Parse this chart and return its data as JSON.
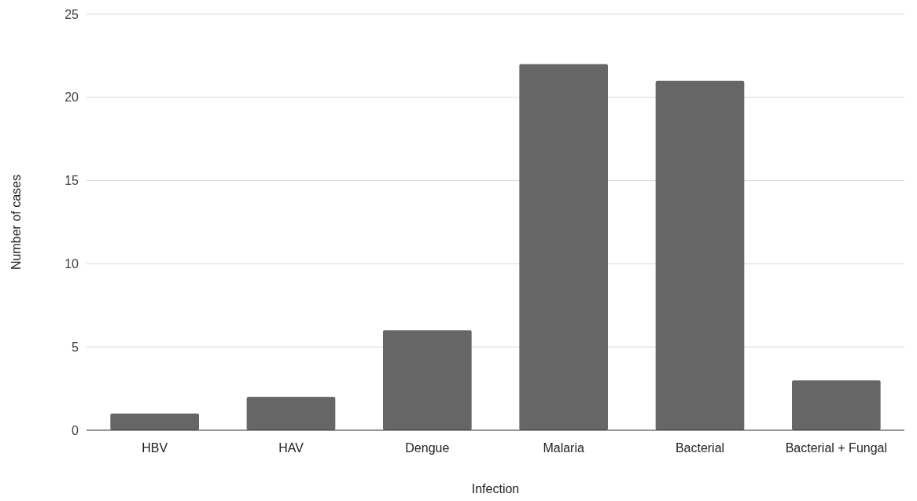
{
  "chart_data": {
    "type": "bar",
    "xlabel": "Infection",
    "ylabel": "Number of cases",
    "categories": [
      "HBV",
      "HAV",
      "Dengue",
      "Malaria",
      "Bacterial",
      "Bacterial + Fungal"
    ],
    "values": [
      1,
      2,
      6,
      22,
      21,
      3
    ],
    "color": "#666666",
    "ylim": [
      0,
      25
    ],
    "yticks": [
      0,
      5,
      10,
      15,
      20,
      25
    ],
    "grid": "y"
  }
}
